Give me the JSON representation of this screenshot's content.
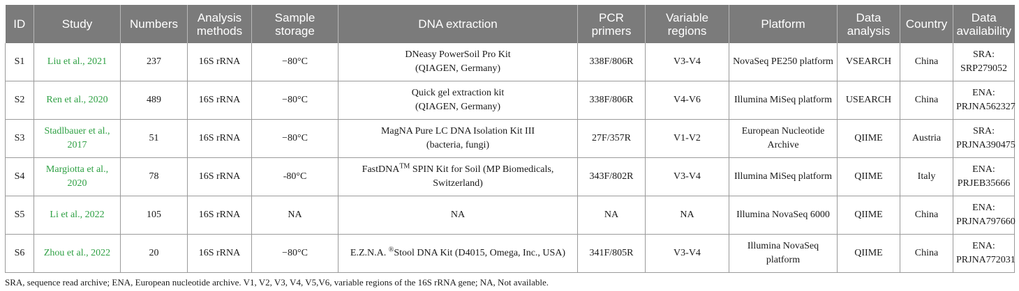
{
  "table": {
    "headers": [
      "ID",
      "Study",
      "Numbers",
      "Analysis methods",
      "Sample storage",
      "DNA extraction",
      "PCR primers",
      "Variable regions",
      "Platform",
      "Data analysis",
      "Country",
      "Data availability"
    ],
    "rows": [
      {
        "id": "S1",
        "study": "Liu et al., 2021",
        "numbers": "237",
        "method": "16S rRNA",
        "storage": "−80°C",
        "dna_pre": "DNeasy PowerSoil Pro Kit",
        "dna_sup": "",
        "dna_post": "(QIAGEN, Germany)",
        "primers": "338F/806R",
        "regions": "V3-V4",
        "platform": "NovaSeq PE250 platform",
        "analysis": "VSEARCH",
        "country": "China",
        "availability": "SRA: SRP279052"
      },
      {
        "id": "S2",
        "study": "Ren et al., 2020",
        "numbers": "489",
        "method": "16S rRNA",
        "storage": "−80°C",
        "dna_pre": "Quick gel extraction kit",
        "dna_sup": "",
        "dna_post": "(QIAGEN, Germany)",
        "primers": "338F/806R",
        "regions": "V4-V6",
        "platform": "Illumina MiSeq platform",
        "analysis": "USEARCH",
        "country": "China",
        "availability": "ENA: PRJNA562327"
      },
      {
        "id": "S3",
        "study": "Stadlbauer et al., 2017",
        "numbers": "51",
        "method": "16S rRNA",
        "storage": "−80°C",
        "dna_pre": "MagNA Pure LC DNA Isolation Kit III",
        "dna_sup": "",
        "dna_post": "(bacteria, fungi)",
        "primers": "27F/357R",
        "regions": "V1-V2",
        "platform": "European Nucleotide Archive",
        "analysis": "QIIME",
        "country": "Austria",
        "availability": "SRA: PRJNA390475"
      },
      {
        "id": "S4",
        "study": "Margiotta et al., 2020",
        "numbers": "78",
        "method": "16S rRNA",
        "storage": "-80°C",
        "dna_pre": "FastDNA",
        "dna_sup": "TM",
        "dna_post": " SPIN Kit for Soil (MP Biomedicals, Switzerland)",
        "primers": "343F/802R",
        "regions": "V3-V4",
        "platform": "Illumina MiSeq platform",
        "analysis": "QIIME",
        "country": "Italy",
        "availability": "ENA: PRJEB35666"
      },
      {
        "id": "S5",
        "study": "Li et al., 2022",
        "numbers": "105",
        "method": "16S rRNA",
        "storage": "NA",
        "dna_pre": "NA",
        "dna_sup": "",
        "dna_post": "",
        "primers": "NA",
        "regions": "NA",
        "platform": "Illumina NovaSeq 6000",
        "analysis": "QIIME",
        "country": "China",
        "availability": "ENA: PRJNA797660"
      },
      {
        "id": "S6",
        "study": "Zhou et al., 2022",
        "numbers": "20",
        "method": "16S rRNA",
        "storage": "−80°C",
        "dna_pre": "E.Z.N.A. ",
        "dna_sup": "®",
        "dna_post": "Stool DNA Kit (D4015, Omega, Inc., USA)",
        "primers": "341F/805R",
        "regions": "V3-V4",
        "platform": "Illumina NovaSeq platform",
        "analysis": "QIIME",
        "country": "China",
        "availability": "ENA: PRJNA772031"
      }
    ]
  },
  "footnote": "SRA, sequence read archive; ENA, European nucleotide archive. V1, V2, V3, V4, V5,V6, variable regions of the 16S rRNA gene; NA, Not available."
}
